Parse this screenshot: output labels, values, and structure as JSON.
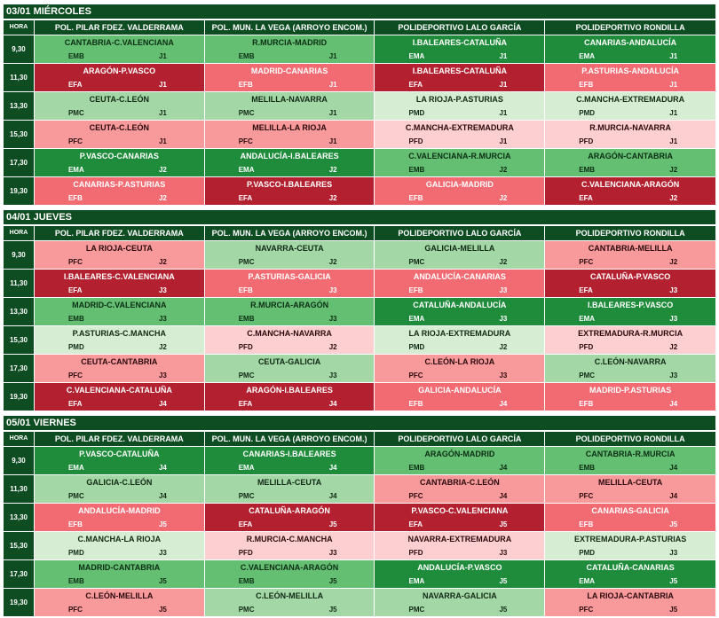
{
  "venues": [
    "POL. PILAR FDEZ. VALDERRAMA",
    "POL. MUN. LA VEGA (ARROYO ENCOM.)",
    "POLIDEPORTIVO LALO GARCÍA",
    "POLIDEPORTIVO RONDILLA"
  ],
  "hora_label": "HORA",
  "category_colors": {
    "EMA": "#1e8c3a",
    "EMB": "#65bf72",
    "EFA": "#b3202f",
    "EFB": "#f26a72",
    "PMC": "#a3d7a6",
    "PMD": "#d6edd3",
    "PFC": "#f8999c",
    "PFD": "#fdcfd0"
  },
  "days": [
    {
      "title": "03/01 MIÉRCOLES",
      "rows": [
        {
          "hora": "9,30",
          "cells": [
            {
              "match": "CANTABRIA-C.VALENCIANA",
              "group": "EMB",
              "jornada": "J1"
            },
            {
              "match": "R.MURCIA-MADRID",
              "group": "EMB",
              "jornada": "J1"
            },
            {
              "match": "I.BALEARES-CATALUÑA",
              "group": "EMA",
              "jornada": "J1"
            },
            {
              "match": "CANARIAS-ANDALUCÍA",
              "group": "EMA",
              "jornada": "J1"
            }
          ]
        },
        {
          "hora": "11,30",
          "cells": [
            {
              "match": "ARAGÓN-P.VASCO",
              "group": "EFA",
              "jornada": "J1"
            },
            {
              "match": "MADRID-CANARIAS",
              "group": "EFB",
              "jornada": "J1"
            },
            {
              "match": "I.BALEARES-CATALUÑA",
              "group": "EFA",
              "jornada": "J1"
            },
            {
              "match": "P.ASTURIAS-ANDALUCÍA",
              "group": "EFB",
              "jornada": "J1"
            }
          ]
        },
        {
          "hora": "13,30",
          "cells": [
            {
              "match": "CEUTA-C.LEÓN",
              "group": "PMC",
              "jornada": "J1"
            },
            {
              "match": "MELILLA-NAVARRA",
              "group": "PMC",
              "jornada": "J1"
            },
            {
              "match": "LA RIOJA-P.ASTURIAS",
              "group": "PMD",
              "jornada": "J1"
            },
            {
              "match": "C.MANCHA-EXTREMADURA",
              "group": "PMD",
              "jornada": "J1"
            }
          ]
        },
        {
          "hora": "15,30",
          "cells": [
            {
              "match": "CEUTA-C.LEÓN",
              "group": "PFC",
              "jornada": "J1"
            },
            {
              "match": "MELILLA-LA RIOJA",
              "group": "PFC",
              "jornada": "J1"
            },
            {
              "match": "C.MANCHA-EXTREMADURA",
              "group": "PFD",
              "jornada": "J1"
            },
            {
              "match": "R.MURCIA-NAVARRA",
              "group": "PFD",
              "jornada": "J1"
            }
          ]
        },
        {
          "hora": "17,30",
          "cells": [
            {
              "match": "P.VASCO-CANARIAS",
              "group": "EMA",
              "jornada": "J2"
            },
            {
              "match": "ANDALUCÍA-I.BALEARES",
              "group": "EMA",
              "jornada": "J2"
            },
            {
              "match": "C.VALENCIANA-R.MURCIA",
              "group": "EMB",
              "jornada": "J2"
            },
            {
              "match": "ARAGÓN-CANTABRIA",
              "group": "EMB",
              "jornada": "J2"
            }
          ]
        },
        {
          "hora": "19,30",
          "cells": [
            {
              "match": "CANARIAS-P.ASTURIAS",
              "group": "EFB",
              "jornada": "J2"
            },
            {
              "match": "P.VASCO-I.BALEARES",
              "group": "EFA",
              "jornada": "J2"
            },
            {
              "match": "GALICIA-MADRID",
              "group": "EFB",
              "jornada": "J2"
            },
            {
              "match": "C.VALENCIANA-ARAGÓN",
              "group": "EFA",
              "jornada": "J2"
            }
          ]
        }
      ]
    },
    {
      "title": "04/01 JUEVES",
      "rows": [
        {
          "hora": "9,30",
          "cells": [
            {
              "match": "LA RIOJA-CEUTA",
              "group": "PFC",
              "jornada": "J2"
            },
            {
              "match": "NAVARRA-CEUTA",
              "group": "PMC",
              "jornada": "J2"
            },
            {
              "match": "GALICIA-MELILLA",
              "group": "PMC",
              "jornada": "J2"
            },
            {
              "match": "CANTABRIA-MELILLA",
              "group": "PFC",
              "jornada": "J2"
            }
          ]
        },
        {
          "hora": "11,30",
          "cells": [
            {
              "match": "I.BALEARES-C.VALENCIANA",
              "group": "EFA",
              "jornada": "J3"
            },
            {
              "match": "P.ASTURIAS-GALICIA",
              "group": "EFB",
              "jornada": "J3"
            },
            {
              "match": "ANDALUCÍA-CANARIAS",
              "group": "EFB",
              "jornada": "J3"
            },
            {
              "match": "CATALUÑA-P.VASCO",
              "group": "EFA",
              "jornada": "J3"
            }
          ]
        },
        {
          "hora": "13,30",
          "cells": [
            {
              "match": "MADRID-C.VALENCIANA",
              "group": "EMB",
              "jornada": "J3"
            },
            {
              "match": "R.MURCIA-ARAGÓN",
              "group": "EMB",
              "jornada": "J3"
            },
            {
              "match": "CATALUÑA-ANDALUCÍA",
              "group": "EMA",
              "jornada": "J3"
            },
            {
              "match": "I.BALEARES-P.VASCO",
              "group": "EMA",
              "jornada": "J3"
            }
          ]
        },
        {
          "hora": "15,30",
          "cells": [
            {
              "match": "P.ASTURIAS-C.MANCHA",
              "group": "PMD",
              "jornada": "J2"
            },
            {
              "match": "C.MANCHA-NAVARRA",
              "group": "PFD",
              "jornada": "J2"
            },
            {
              "match": "LA RIOJA-EXTREMADURA",
              "group": "PMD",
              "jornada": "J2"
            },
            {
              "match": "EXTREMADURA-R.MURCIA",
              "group": "PFD",
              "jornada": "J2"
            }
          ]
        },
        {
          "hora": "17,30",
          "cells": [
            {
              "match": "CEUTA-CANTABRIA",
              "group": "PFC",
              "jornada": "J3"
            },
            {
              "match": "CEUTA-GALICIA",
              "group": "PMC",
              "jornada": "J3"
            },
            {
              "match": "C.LEÓN-LA RIOJA",
              "group": "PFC",
              "jornada": "J3"
            },
            {
              "match": "C.LEÓN-NAVARRA",
              "group": "PMC",
              "jornada": "J3"
            }
          ]
        },
        {
          "hora": "19,30",
          "cells": [
            {
              "match": "C.VALENCIANA-CATALUÑA",
              "group": "EFA",
              "jornada": "J4"
            },
            {
              "match": "ARAGÓN-I.BALEARES",
              "group": "EFA",
              "jornada": "J4"
            },
            {
              "match": "GALICIA-ANDALUCÍA",
              "group": "EFB",
              "jornada": "J4"
            },
            {
              "match": "MADRID-P.ASTURIAS",
              "group": "EFB",
              "jornada": "J4"
            }
          ]
        }
      ]
    },
    {
      "title": "05/01 VIERNES",
      "rows": [
        {
          "hora": "9,30",
          "cells": [
            {
              "match": "P.VASCO-CATALUÑA",
              "group": "EMA",
              "jornada": "J4"
            },
            {
              "match": "CANARIAS-I.BALEARES",
              "group": "EMA",
              "jornada": "J4"
            },
            {
              "match": "ARAGÓN-MADRID",
              "group": "EMB",
              "jornada": "J4"
            },
            {
              "match": "CANTABRIA-R.MURCIA",
              "group": "EMB",
              "jornada": "J4"
            }
          ]
        },
        {
          "hora": "11,30",
          "cells": [
            {
              "match": "GALICIA-C.LEÓN",
              "group": "PMC",
              "jornada": "J4"
            },
            {
              "match": "MELILLA-CEUTA",
              "group": "PMC",
              "jornada": "J4"
            },
            {
              "match": "CANTABRIA-C.LEÓN",
              "group": "PFC",
              "jornada": "J4"
            },
            {
              "match": "MELILLA-CEUTA",
              "group": "PFC",
              "jornada": "J4"
            }
          ]
        },
        {
          "hora": "13,30",
          "cells": [
            {
              "match": "ANDALUCÍA-MADRID",
              "group": "EFB",
              "jornada": "J5"
            },
            {
              "match": "CATALUÑA-ARAGÓN",
              "group": "EFA",
              "jornada": "J5"
            },
            {
              "match": "P.VASCO-C.VALENCIANA",
              "group": "EFA",
              "jornada": "J5"
            },
            {
              "match": "CANARIAS-GALICIA",
              "group": "EFB",
              "jornada": "J5"
            }
          ]
        },
        {
          "hora": "15,30",
          "cells": [
            {
              "match": "C.MANCHA-LA RIOJA",
              "group": "PMD",
              "jornada": "J3"
            },
            {
              "match": "R.MURCIA-C.MANCHA",
              "group": "PFD",
              "jornada": "J3"
            },
            {
              "match": "NAVARRA-EXTREMADURA",
              "group": "PFD",
              "jornada": "J3"
            },
            {
              "match": "EXTREMADURA-P.ASTURIAS",
              "group": "PMD",
              "jornada": "J3"
            }
          ]
        },
        {
          "hora": "17,30",
          "cells": [
            {
              "match": "MADRID-CANTABRIA",
              "group": "EMB",
              "jornada": "J5"
            },
            {
              "match": "C.VALENCIANA-ARAGÓN",
              "group": "EMB",
              "jornada": "J5"
            },
            {
              "match": "ANDALUCÍA-P.VASCO",
              "group": "EMA",
              "jornada": "J5"
            },
            {
              "match": "CATALUÑA-CANARIAS",
              "group": "EMA",
              "jornada": "J5"
            }
          ]
        },
        {
          "hora": "19,30",
          "cells": [
            {
              "match": "C.LEÓN-MELILLA",
              "group": "PFC",
              "jornada": "J5"
            },
            {
              "match": "C.LEÓN-MELILLA",
              "group": "PMC",
              "jornada": "J5"
            },
            {
              "match": "NAVARRA-GALICIA",
              "group": "PMC",
              "jornada": "J5"
            },
            {
              "match": "LA RIOJA-CANTABRIA",
              "group": "PFC",
              "jornada": "J5"
            }
          ]
        }
      ]
    }
  ]
}
